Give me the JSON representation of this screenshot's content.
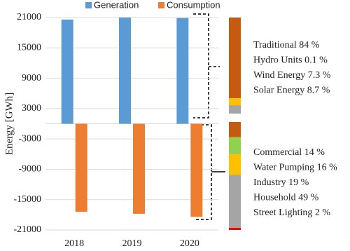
{
  "chart_data": [
    {
      "type": "bar",
      "ylabel": "Energy [GWh]",
      "categories": [
        "2018",
        "2019",
        "2020"
      ],
      "series": [
        {
          "name": "Generation",
          "color": "#5b9bd5",
          "values": [
            20600,
            21000,
            20900
          ]
        },
        {
          "name": "Consumption",
          "color": "#ed7d31",
          "values": [
            -17400,
            -17800,
            -18400
          ]
        }
      ],
      "ylim": [
        -21000,
        21000
      ],
      "yticks": [
        -21000,
        -15000,
        -9000,
        -3000,
        3000,
        9000,
        15000,
        21000
      ],
      "grid": true,
      "legend": "top"
    },
    {
      "type": "stacked_percent",
      "categories": [
        "Traditional",
        "Hydro Units",
        "Wind Energy",
        "Solar Energy"
      ],
      "values": [
        84,
        0.1,
        7.3,
        8.7
      ],
      "value_labels": [
        "84 %",
        "0.1 %",
        "7.3 %",
        "8.7 %"
      ],
      "colors": [
        "#c55a11",
        "#92d050",
        "#ffc000",
        "#a5a5a5"
      ]
    },
    {
      "type": "stacked_percent",
      "categories": [
        "Commercial",
        "Water Pumping",
        "Industry",
        "Household",
        "Street Lighting"
      ],
      "values": [
        14,
        16,
        19,
        49,
        2
      ],
      "value_labels": [
        "14 %",
        "16 %",
        "19 %",
        "49 %",
        "2 %"
      ],
      "colors": [
        "#c55a11",
        "#92d050",
        "#ffc000",
        "#a5a5a5",
        "#ff0000"
      ]
    }
  ]
}
